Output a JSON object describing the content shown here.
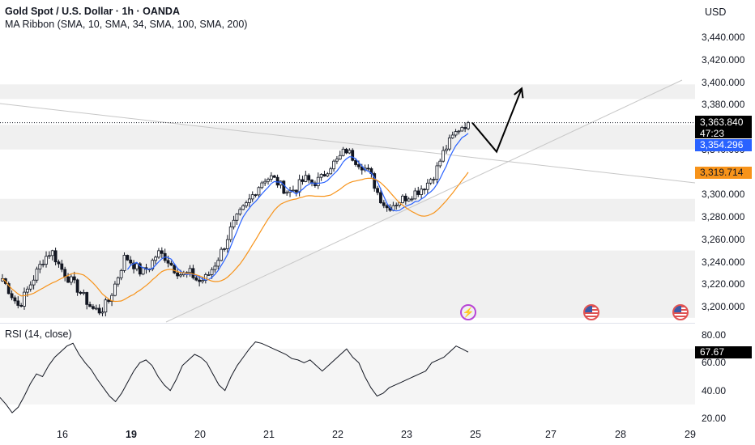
{
  "header": {
    "title": "Gold Spot / U.S. Dollar · 1h · OANDA",
    "indicator": "MA Ribbon (SMA, 10, SMA, 34, SMA, 100, SMA, 200)",
    "rsi_title": "RSI (14, close)",
    "currency": "USD"
  },
  "price_axis": {
    "ticks": [
      "3,440.000",
      "3,420.000",
      "3,400.000",
      "3,380.000",
      "3,360.000",
      "3,340.000",
      "3,320.000",
      "3,300.000",
      "3,280.000",
      "3,260.000",
      "3,240.000",
      "3,220.000",
      "3,200.000"
    ],
    "current_price": "3,363.840",
    "countdown": "47:23",
    "sma10_value": "3,354.296",
    "sma34_value": "3,319.714"
  },
  "rsi_axis": {
    "ticks": [
      "80.00",
      "60.00",
      "40.00",
      "20.00"
    ],
    "current": "67.67"
  },
  "time_axis": {
    "labels": [
      "16",
      "19",
      "20",
      "21",
      "22",
      "23",
      "25",
      "27",
      "28",
      "29"
    ],
    "bold_label": "19"
  },
  "colors": {
    "up": "#ffffff",
    "down": "#131722",
    "sma10": "#2962ff",
    "sma34": "#f7931a",
    "current_tag": "#000000",
    "rsi_line": "#131722",
    "band": "#f0f0f0",
    "trendline": "#c7c7c7",
    "projection": "#000000"
  },
  "icons": [
    "flash-event-icon",
    "us-flag-event-icon",
    "us-flag-event-icon"
  ],
  "chart_data": {
    "type": "candlestick",
    "title": "Gold Spot / U.S. Dollar · 1h · OANDA",
    "interval": "1h",
    "ylim": [
      3190,
      3450
    ],
    "grid": false,
    "x_label_days": [
      "16",
      "19",
      "20",
      "21",
      "22",
      "23",
      "25",
      "27",
      "28",
      "29"
    ],
    "close_path_anchors": [
      3225,
      3212,
      3200,
      3214,
      3228,
      3242,
      3250,
      3236,
      3226,
      3218,
      3208,
      3198,
      3196,
      3205,
      3224,
      3245,
      3238,
      3230,
      3236,
      3248,
      3244,
      3234,
      3228,
      3230,
      3222,
      3226,
      3238,
      3252,
      3270,
      3282,
      3292,
      3304,
      3314,
      3315,
      3308,
      3302,
      3306,
      3314,
      3310,
      3314,
      3325,
      3330,
      3340,
      3332,
      3326,
      3318,
      3300,
      3288,
      3292,
      3296,
      3300,
      3304,
      3310,
      3320,
      3338,
      3350,
      3360,
      3363.84
    ],
    "series": [
      {
        "name": "SMA 10",
        "last": 3354.296
      },
      {
        "name": "SMA 34",
        "last": 3319.714
      }
    ],
    "price_bands": [
      [
        3385,
        3398
      ],
      [
        3340,
        3362
      ],
      [
        3276,
        3296
      ],
      [
        3190,
        3250
      ]
    ],
    "current_price": 3363.84,
    "projection_path": [
      [
        3363.84,
        0
      ],
      [
        3338,
        1
      ],
      [
        3390,
        2
      ]
    ],
    "rsi": {
      "name": "RSI (14, close)",
      "ylim": [
        18,
        82
      ],
      "band": [
        30,
        70
      ],
      "last": 67.67,
      "values": [
        35,
        30,
        24,
        28,
        36,
        45,
        52,
        50,
        58,
        64,
        68,
        72,
        74,
        66,
        60,
        55,
        48,
        42,
        36,
        32,
        38,
        46,
        54,
        60,
        62,
        58,
        50,
        44,
        40,
        48,
        58,
        62,
        66,
        64,
        60,
        52,
        44,
        40,
        50,
        58,
        64,
        70,
        75,
        74,
        72,
        70,
        68,
        66,
        63,
        62,
        60,
        62,
        58,
        54,
        58,
        62,
        66,
        70,
        64,
        60,
        50,
        42,
        36,
        38,
        42,
        44,
        46,
        48,
        50,
        52,
        54,
        60,
        62,
        64,
        68,
        72,
        70,
        67.67
      ]
    }
  }
}
